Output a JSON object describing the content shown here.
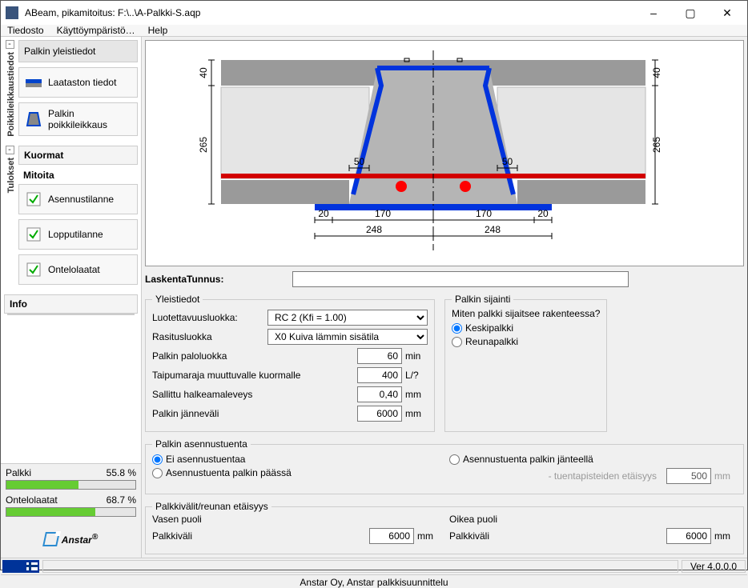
{
  "window": {
    "title": "ABeam, pikamitoitus:  F:\\..\\A-Palkki-S.aqp",
    "min": "–",
    "max": "▢",
    "close": "✕"
  },
  "menu": {
    "file": "Tiedosto",
    "env": "Käyttöympäristö…",
    "help": "Help"
  },
  "sidebar": {
    "group1_tab": "Poikkileikkaustiedot",
    "group1": {
      "general": "Palkin yleistiedot",
      "slab": "Laataston tiedot",
      "section": "Palkin poikkileikkaus"
    },
    "group2_tab": "Tulokset",
    "group2": {
      "hdr1": "Kuormat",
      "hdr2": "Mitoita",
      "install": "Asennustilanne",
      "final": "Lopputilanne",
      "hollow": "Ontelolaatat"
    },
    "info": "Info"
  },
  "bars": {
    "beam_label": "Palkki",
    "beam_pct": "55.8 %",
    "beam_fill": 55.8,
    "beam_color": "#66cc33",
    "slab_label": "Ontelolaatat",
    "slab_pct": "68.7 %",
    "slab_fill": 68.7,
    "slab_color": "#66cc33"
  },
  "logo": {
    "text": "Anstar",
    "sup": "®"
  },
  "diagram": {
    "colors": {
      "steel": "#0033dd",
      "rebar": "#d20000",
      "dot": "#ff0000",
      "slab": "#9a9a9a",
      "hollow": "#e5e5e5",
      "line": "#000"
    },
    "dims": {
      "top_h": "40",
      "side_h": "265",
      "gap": "50",
      "btm_20": "20",
      "btm_170": "170",
      "btm_248": "248"
    }
  },
  "form": {
    "calc_id_label": "LaskentaTunnus:",
    "calc_id_value": "",
    "general_legend": "Yleistiedot",
    "reliability_label": "Luotettavuusluokka:",
    "reliability_value": "RC 2  (Kfi = 1.00)",
    "exposure_label": "Rasitusluokka",
    "exposure_value": "X0  Kuiva lämmin sisätila",
    "fire_label": "Palkin paloluokka",
    "fire_value": "60",
    "fire_unit": "min",
    "defl_label": "Taipumaraja muuttuvalle kuormalle",
    "defl_value": "400",
    "defl_unit": "L/?",
    "crack_label": "Sallittu halkeamaleveys",
    "crack_value": "0,40",
    "crack_unit": "mm",
    "span_label": "Palkin jänneväli",
    "span_value": "6000",
    "span_unit": "mm",
    "location_legend": "Palkin sijainti",
    "location_q": "Miten palkki sijaitsee rakenteessa?",
    "loc_center": "Keskipalkki",
    "loc_edge": "Reunapalkki",
    "support_legend": "Palkin asennustuenta",
    "sup_none": "Ei asennustuentaa",
    "sup_end": "Asennustuenta palkin päässä",
    "sup_span": "Asennustuenta palkin jänteellä",
    "sup_dist_label": "- tuentapisteiden etäisyys",
    "sup_dist_value": "500",
    "sup_dist_unit": "mm",
    "spans_legend": "Palkkivälit/reunan etäisyys",
    "left_side": "Vasen puoli",
    "right_side": "Oikea puoli",
    "span_text": "Palkkiväli",
    "span_left": "6000",
    "span_right": "6000"
  },
  "footer": {
    "version": "Ver 4.0.0.0"
  },
  "status": "Anstar Oy,  Anstar palkkisuunnittelu"
}
